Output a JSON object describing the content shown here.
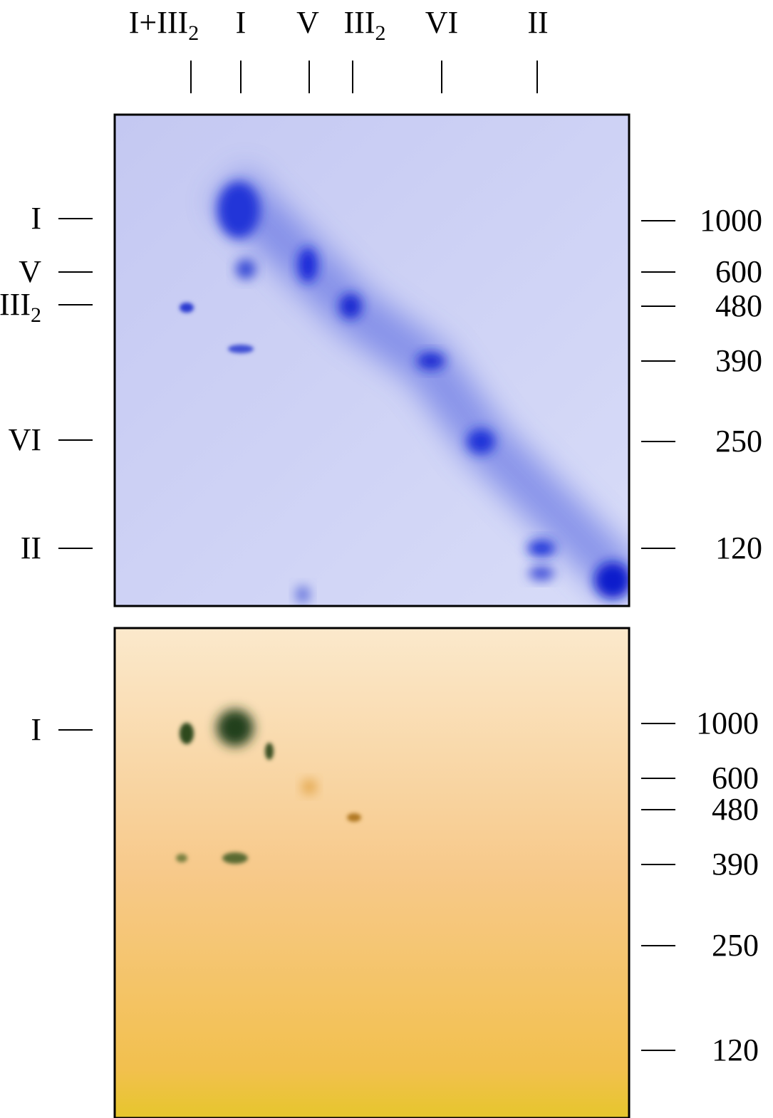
{
  "top_labels": [
    {
      "text": "I+III",
      "sub": "2"
    },
    {
      "text": "I"
    },
    {
      "text": "V"
    },
    {
      "text": "III",
      "sub": "2"
    },
    {
      "text": "VI"
    },
    {
      "text": "II"
    }
  ],
  "upper_panel": {
    "left_labels": [
      {
        "text": "I"
      },
      {
        "text": "V"
      },
      {
        "text": "III",
        "sub": "2"
      },
      {
        "text": "VI"
      },
      {
        "text": "II"
      }
    ],
    "right_labels": [
      "1000",
      "600",
      "480",
      "390",
      "250",
      "120"
    ]
  },
  "lower_panel": {
    "left_labels": [
      {
        "text": "I"
      }
    ],
    "right_labels": [
      "1000",
      "600",
      "480",
      "390",
      "250",
      "120"
    ]
  }
}
